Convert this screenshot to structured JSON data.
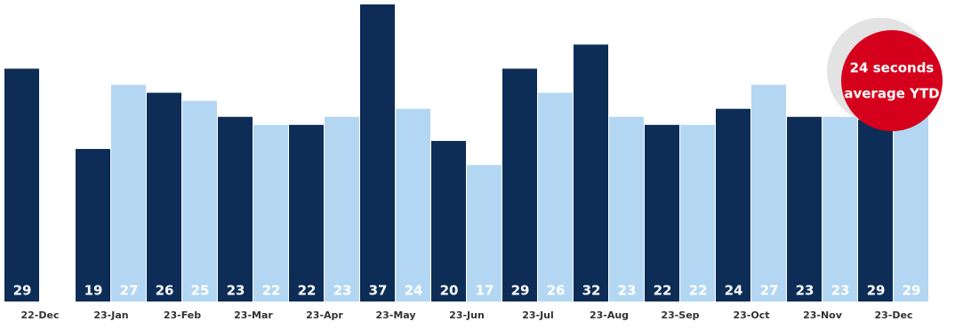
{
  "chart_data": {
    "type": "bar",
    "categories": [
      "22-Dec",
      "23-Jan",
      "23-Feb",
      "23-Mar",
      "23-Apr",
      "23-May",
      "23-Jun",
      "23-Jul",
      "23-Aug",
      "23-Sep",
      "23-Oct",
      "23-Nov",
      "23-Dec"
    ],
    "series": [
      {
        "color": "#0d2d57",
        "values": [
          29,
          19,
          26,
          23,
          22,
          37,
          20,
          29,
          32,
          22,
          24,
          23,
          29
        ]
      },
      {
        "color": "#b3d7f2",
        "values": [
          null,
          27,
          25,
          22,
          23,
          24,
          17,
          26,
          23,
          22,
          27,
          23,
          29
        ]
      }
    ],
    "ylim": [
      0,
      37
    ],
    "annotation": [
      "24 seconds",
      "average YTD"
    ],
    "annotation_color": "#d5001c"
  }
}
